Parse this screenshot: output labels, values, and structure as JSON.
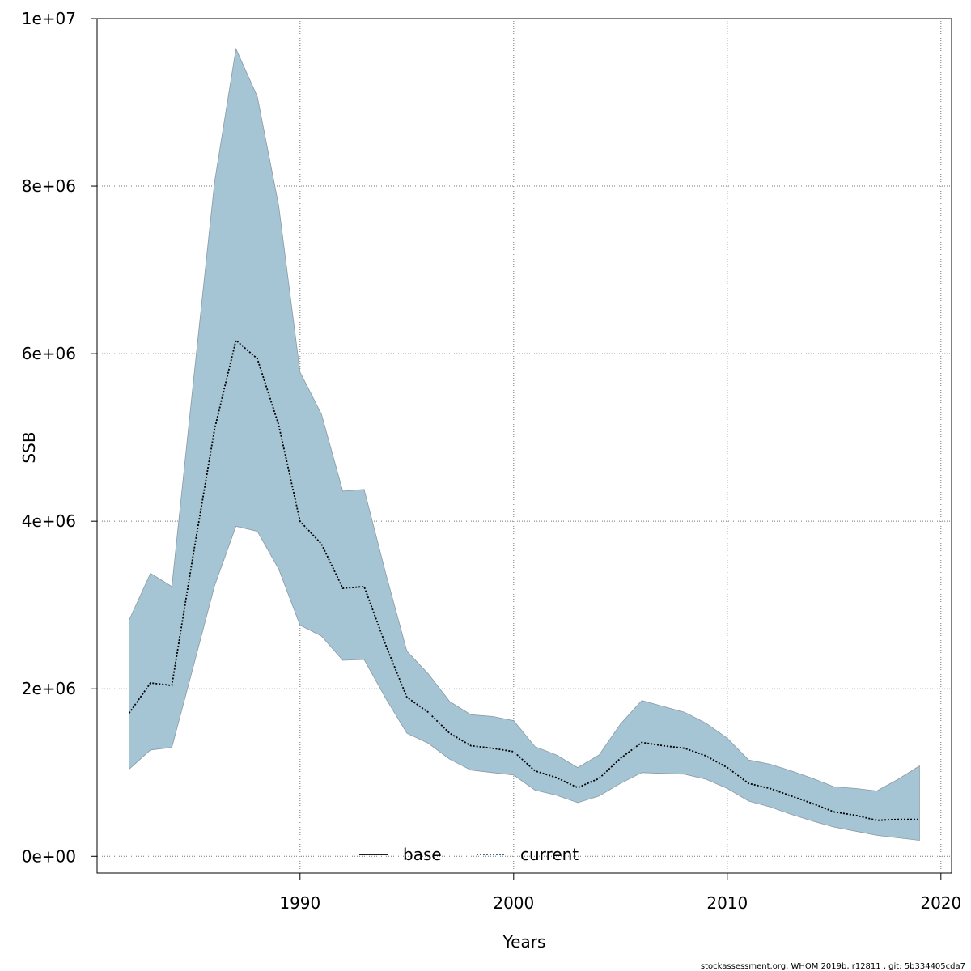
{
  "footnote": "stockassessment.org, WHOM  2019b, r12811 , git: 5b334405cda7",
  "chart_data": {
    "type": "area",
    "title": "",
    "xlabel": "Years",
    "ylabel": "SSB",
    "xlim": [
      1980.5,
      2020.5
    ],
    "ylim": [
      -200000,
      10000000
    ],
    "x_ticks": [
      1990,
      2000,
      2010,
      2020
    ],
    "x_tick_labels": [
      "1990",
      "2000",
      "2010",
      "2020"
    ],
    "y_ticks": [
      0,
      2000000,
      4000000,
      6000000,
      8000000,
      10000000
    ],
    "y_tick_labels": [
      "0e+00",
      "2e+06",
      "4e+06",
      "6e+06",
      "8e+06",
      "1e+07"
    ],
    "grid": true,
    "legend_position": "bottom",
    "colors": {
      "band_fill": "#a5c4d4",
      "band_stroke": "#8a9aa5",
      "grid": "#777777",
      "line": "#000000",
      "current_line_accent": "#1f5f8b"
    },
    "x": [
      1982,
      1983,
      1984,
      1985,
      1986,
      1987,
      1988,
      1989,
      1990,
      1991,
      1992,
      1993,
      1994,
      1995,
      1996,
      1997,
      1998,
      1999,
      2000,
      2001,
      2002,
      2003,
      2004,
      2005,
      2006,
      2007,
      2008,
      2009,
      2010,
      2011,
      2012,
      2013,
      2014,
      2015,
      2016,
      2017,
      2018,
      2019
    ],
    "series": [
      {
        "name": "current",
        "style": "dotted",
        "values": [
          1710000,
          2070000,
          2040000,
          3600000,
          5100000,
          6160000,
          5940000,
          5150000,
          4000000,
          3730000,
          3200000,
          3220000,
          2530000,
          1900000,
          1720000,
          1470000,
          1320000,
          1290000,
          1250000,
          1020000,
          940000,
          820000,
          930000,
          1170000,
          1360000,
          1320000,
          1290000,
          1200000,
          1060000,
          870000,
          810000,
          720000,
          630000,
          530000,
          490000,
          430000,
          440000,
          440000
        ],
        "upper": [
          2820000,
          3380000,
          3220000,
          5650000,
          8050000,
          9640000,
          9070000,
          7770000,
          5780000,
          5280000,
          4360000,
          4380000,
          3390000,
          2450000,
          2180000,
          1850000,
          1690000,
          1670000,
          1620000,
          1310000,
          1210000,
          1060000,
          1210000,
          1580000,
          1860000,
          1790000,
          1720000,
          1590000,
          1410000,
          1150000,
          1100000,
          1020000,
          930000,
          830000,
          810000,
          780000,
          920000,
          1080000
        ],
        "lower": [
          1040000,
          1270000,
          1300000,
          2260000,
          3230000,
          3940000,
          3880000,
          3430000,
          2760000,
          2630000,
          2340000,
          2350000,
          1890000,
          1470000,
          1350000,
          1160000,
          1030000,
          1000000,
          970000,
          790000,
          730000,
          640000,
          720000,
          870000,
          1000000,
          990000,
          980000,
          920000,
          810000,
          660000,
          590000,
          500000,
          420000,
          350000,
          300000,
          250000,
          220000,
          190000
        ]
      }
    ],
    "legend": [
      {
        "label": "base",
        "style": "solid"
      },
      {
        "label": "current",
        "style": "dotted"
      }
    ]
  }
}
